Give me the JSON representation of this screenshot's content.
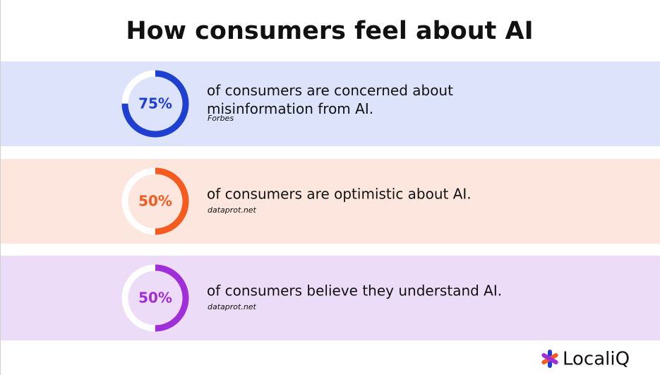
{
  "title": "How consumers feel about AI",
  "stats": [
    {
      "value": 75,
      "label": "75%",
      "text": "of consumers are concerned about misinformation from AI.",
      "source": "Forbes",
      "color": "#1f3fd1",
      "track": "#ffffff",
      "background": "#dce3fb"
    },
    {
      "value": 50,
      "label": "50%",
      "text": "of consumers are optimistic about AI.",
      "source": "dataprot.net",
      "color": "#f55a1f",
      "track": "#ffffff",
      "background": "#fde6de"
    },
    {
      "value": 50,
      "label": "50%",
      "text": "of consumers believe they understand AI.",
      "source": "dataprot.net",
      "color": "#a12fd9",
      "track": "#ffffff",
      "background": "#ecdcf8"
    }
  ],
  "logo": "LocaliQ"
}
